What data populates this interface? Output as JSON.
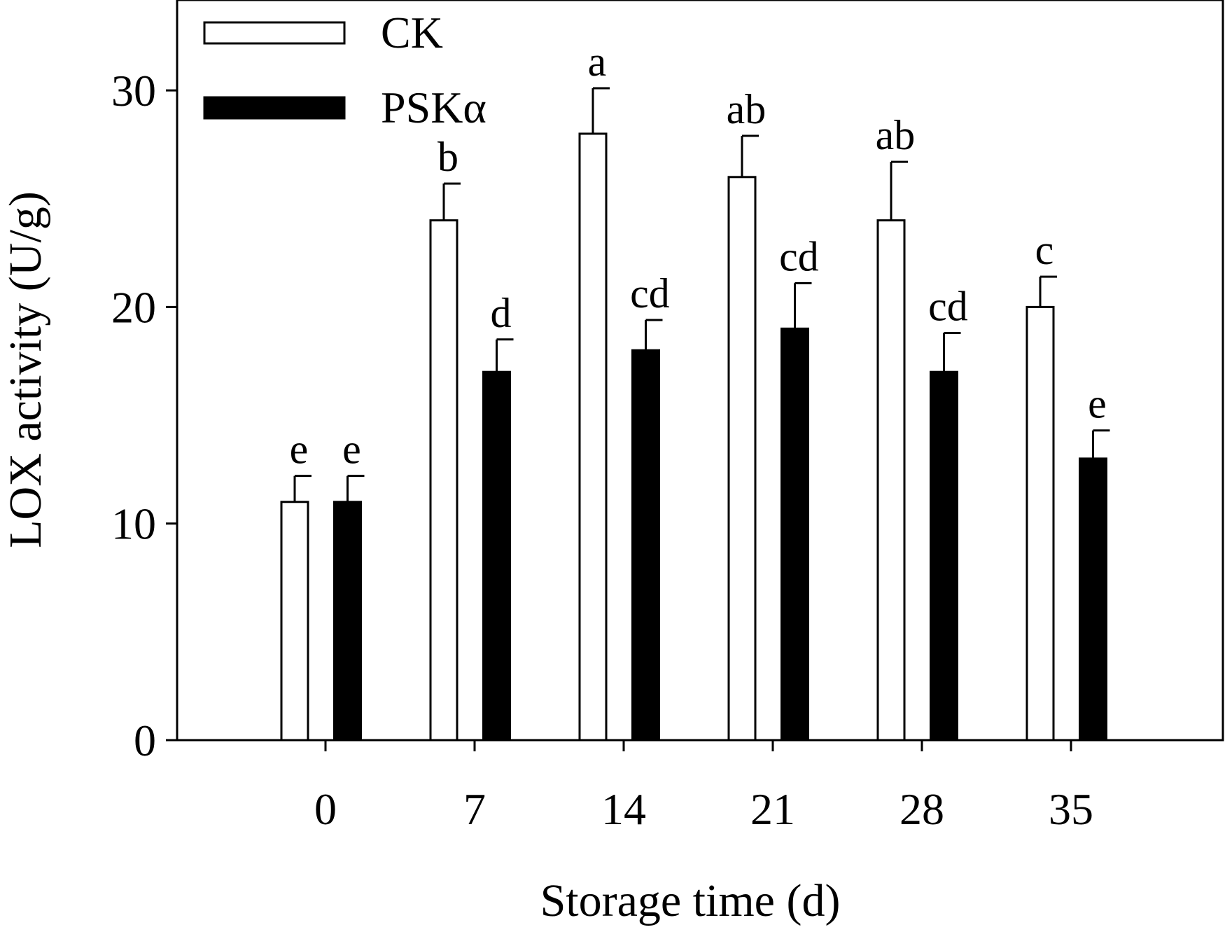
{
  "chart_data": {
    "type": "bar",
    "title": "",
    "xlabel": "Storage time (d)",
    "ylabel": "LOX activity (U/g)",
    "categories": [
      "0",
      "7",
      "14",
      "21",
      "28",
      "35"
    ],
    "ylim": [
      0,
      30
    ],
    "yticks": [
      0,
      10,
      20,
      30
    ],
    "ytick_labels": [
      "0",
      "10",
      "20",
      "30"
    ],
    "grid": false,
    "legend_position": "top-left",
    "series": [
      {
        "name": "CK",
        "fill": "#ffffff",
        "stroke": "#000000",
        "values": [
          11,
          24,
          28,
          26,
          24,
          20
        ],
        "errors": [
          1.2,
          1.7,
          2.1,
          1.9,
          2.7,
          1.4
        ],
        "labels": [
          "e",
          "b",
          "a",
          "ab",
          "ab",
          "c"
        ]
      },
      {
        "name": "PSKα",
        "fill": "#000000",
        "stroke": "#000000",
        "values": [
          11,
          17,
          18,
          19,
          17,
          13
        ],
        "errors": [
          1.2,
          1.5,
          1.4,
          2.1,
          1.8,
          1.3
        ],
        "labels": [
          "e",
          "d",
          "cd",
          "cd",
          "cd",
          "e"
        ]
      }
    ]
  }
}
